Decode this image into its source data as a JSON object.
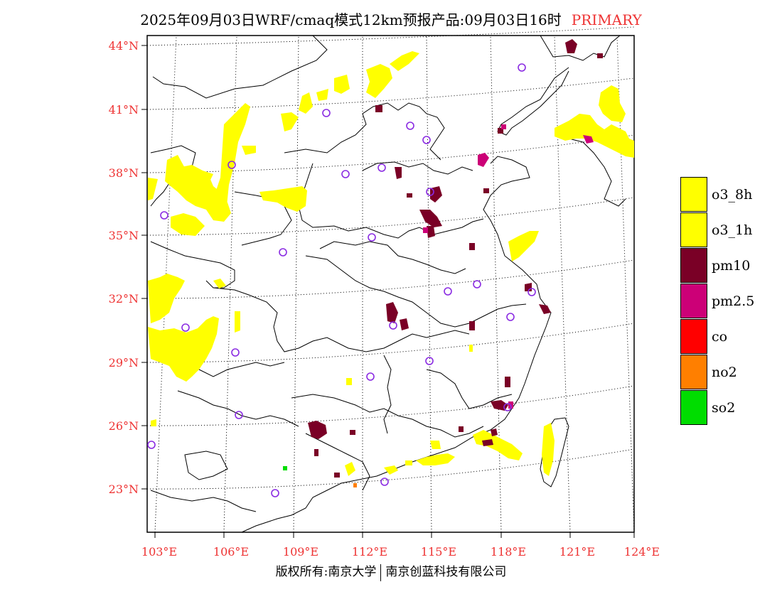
{
  "title": {
    "main": "2025年09月03日WRF/cmaq模式12km预报产品:09月03日16时",
    "tag": "PRIMARY"
  },
  "axes": {
    "lat_labels": [
      "44°N",
      "41°N",
      "38°N",
      "35°N",
      "32°N",
      "29°N",
      "26°N",
      "23°N"
    ],
    "lon_labels": [
      "103°E",
      "106°E",
      "109°E",
      "112°E",
      "115°E",
      "118°E",
      "121°E",
      "124°E"
    ]
  },
  "legend": [
    {
      "label": "o3_8h",
      "color": "#ffff00"
    },
    {
      "label": "o3_1h",
      "color": "#ffff00"
    },
    {
      "label": "pm10",
      "color": "#7a0026"
    },
    {
      "label": "pm2.5",
      "color": "#cc0077"
    },
    {
      "label": "co",
      "color": "#ff0000"
    },
    {
      "label": "no2",
      "color": "#ff7f00"
    },
    {
      "label": "so2",
      "color": "#00dd00"
    }
  ],
  "footer": {
    "left": "版权所有:南京大学",
    "right": "南京创蓝科技有限公司"
  },
  "colors": {
    "o3": "#ffff00",
    "pm10": "#7a0026",
    "pm25": "#cc0077",
    "no2": "#ff7f00",
    "so2": "#00dd00",
    "station": "#8a2be2",
    "axis_label": "#e33333"
  }
}
